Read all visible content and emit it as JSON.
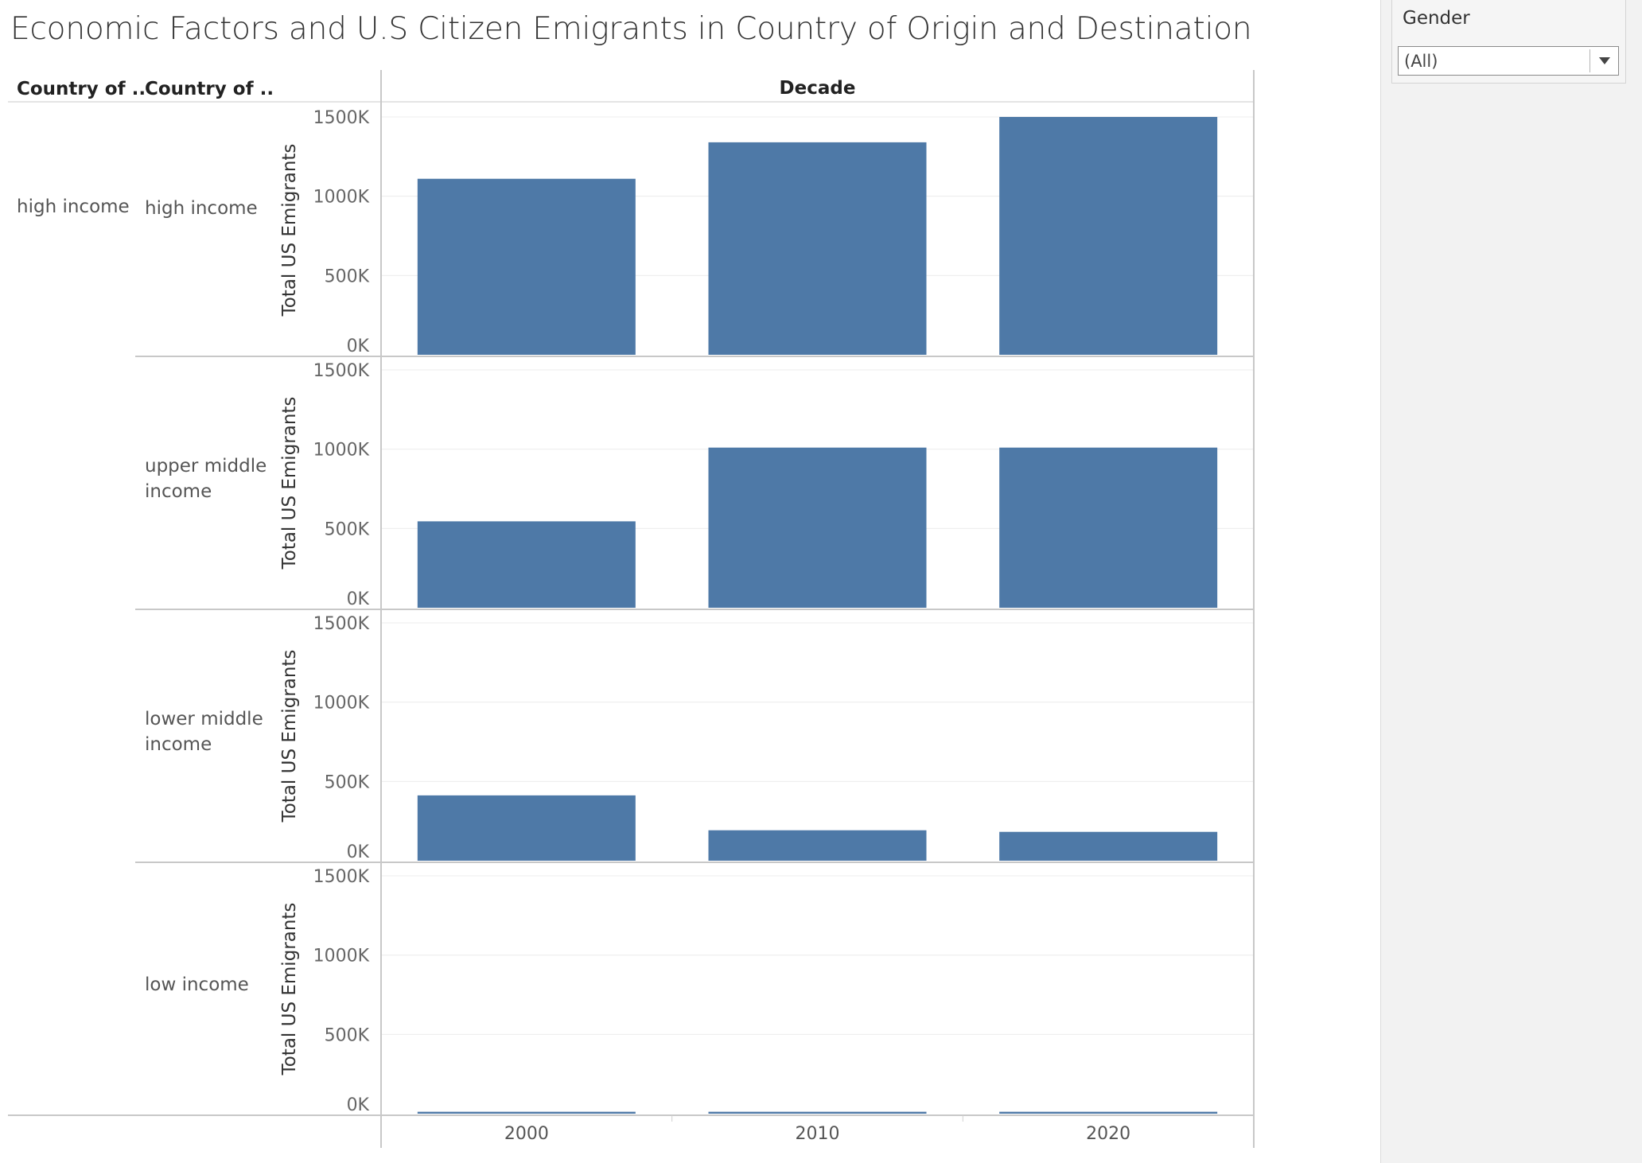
{
  "chart_data": {
    "type": "bar",
    "title": "Economic Factors and U.S Citizen Emigrants in Country of Origin and Destination",
    "column_headers": [
      "Country of ..",
      "Country of .."
    ],
    "column_axis_title": "Decade",
    "categories": [
      "2000",
      "2010",
      "2020"
    ],
    "ylabel": "Total US Emigrants",
    "ylim": [
      0,
      1500000
    ],
    "yticks": [
      0,
      500000,
      1000000,
      1500000
    ],
    "ytick_labels": [
      "0K",
      "500K",
      "1000K",
      "1500K"
    ],
    "grid": true,
    "bar_color": "#4e79a7",
    "origin_groups": [
      {
        "label": "high income",
        "rows": [
          {
            "label": "high income",
            "values": [
              1110000,
              1340000,
              1500000
            ]
          },
          {
            "label": "upper middle income",
            "values": [
              545000,
              1010000,
              1010000
            ]
          },
          {
            "label": "lower middle income",
            "values": [
              412000,
              192000,
              182000
            ]
          },
          {
            "label": "low income",
            "values": [
              12000,
              12000,
              12000
            ]
          }
        ]
      }
    ]
  },
  "filter": {
    "label": "Gender",
    "value": "(All)",
    "arrow_icon": "chevron-down-icon"
  }
}
